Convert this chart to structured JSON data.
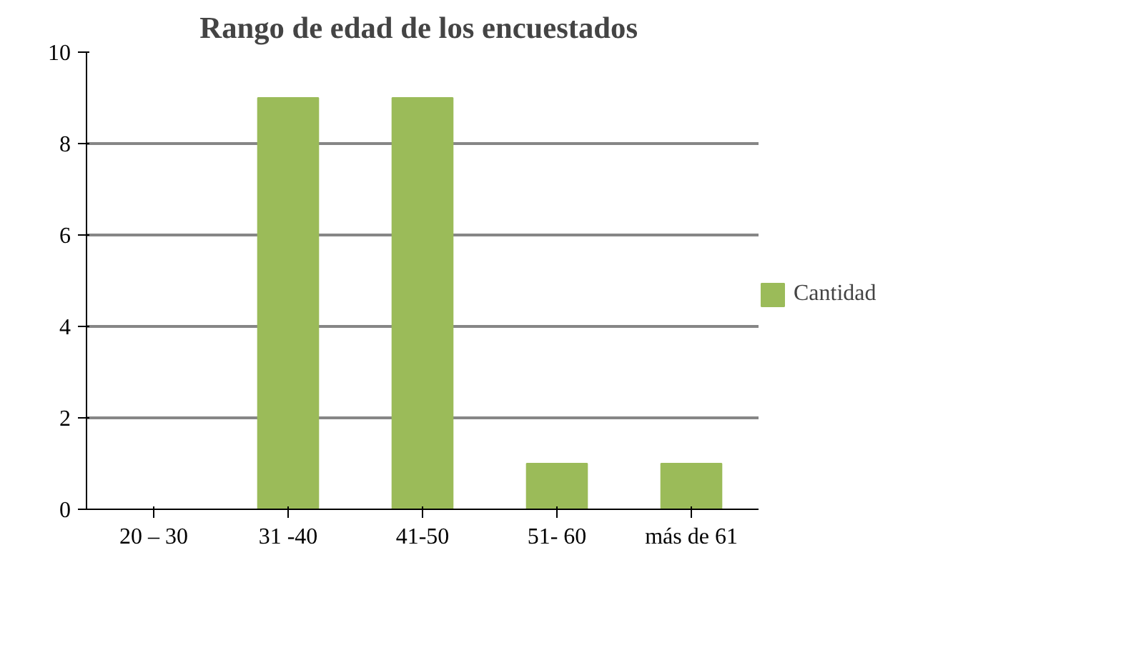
{
  "chart_data": {
    "type": "bar",
    "title": "Rango de edad de  los encuestados",
    "categories": [
      "20 – 30",
      "31 -40",
      "41-50",
      "51- 60",
      "más de 61"
    ],
    "series": [
      {
        "name": "Cantidad",
        "color": "#9bbb59",
        "values": [
          0,
          9,
          9,
          1,
          1
        ]
      }
    ],
    "ylim": [
      0,
      10
    ],
    "yticks": [
      0,
      2,
      4,
      6,
      8,
      10
    ],
    "grid": "y",
    "legend": "right"
  }
}
